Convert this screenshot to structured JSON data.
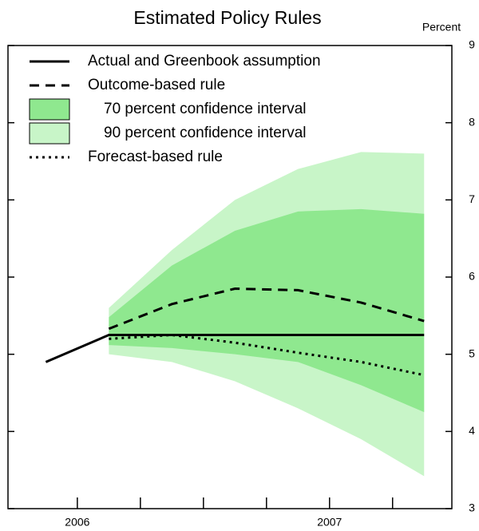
{
  "chart_data": {
    "type": "line",
    "title": "Estimated Policy Rules",
    "y_unit": "Percent",
    "x": [
      2005.875,
      2006.125,
      2006.375,
      2006.625,
      2006.875,
      2007.125,
      2007.375
    ],
    "xlim": [
      2005.725,
      2007.485
    ],
    "xticks": [
      {
        "value": 2006,
        "label": "2006"
      },
      {
        "value": 2007,
        "label": "2007"
      }
    ],
    "xminorticks": [
      2006.25,
      2006.5,
      2006.75,
      2007.25
    ],
    "ylim": [
      3,
      9
    ],
    "yticks": [
      3,
      4,
      5,
      6,
      7,
      8,
      9
    ],
    "legend": "upper left",
    "series": [
      {
        "name": "Actual and Greenbook assumption",
        "type": "line",
        "dash": "solid",
        "color": "#000000",
        "values": [
          4.9,
          5.25,
          5.25,
          5.25,
          5.25,
          5.25,
          5.25
        ]
      },
      {
        "name": "Outcome-based rule",
        "type": "line",
        "dash": "dashed",
        "color": "#000000",
        "values": [
          null,
          5.33,
          5.65,
          5.85,
          5.83,
          5.67,
          5.43
        ]
      },
      {
        "name": "70 percent confidence interval",
        "type": "band",
        "color": "#8fe88f",
        "upper": [
          null,
          5.48,
          6.15,
          6.6,
          6.85,
          6.88,
          6.82
        ],
        "lower": [
          null,
          5.12,
          5.08,
          5.0,
          4.9,
          4.6,
          4.25
        ]
      },
      {
        "name": "90 percent confidence interval",
        "type": "band",
        "color": "#c8f5c8",
        "upper": [
          null,
          5.6,
          6.35,
          7.0,
          7.4,
          7.62,
          7.6
        ],
        "lower": [
          null,
          5.0,
          4.9,
          4.65,
          4.3,
          3.9,
          3.42
        ]
      },
      {
        "name": "Forecast-based rule",
        "type": "line",
        "dash": "dotted",
        "color": "#000000",
        "values": [
          null,
          5.2,
          5.25,
          5.15,
          5.02,
          4.9,
          4.73
        ]
      }
    ]
  }
}
